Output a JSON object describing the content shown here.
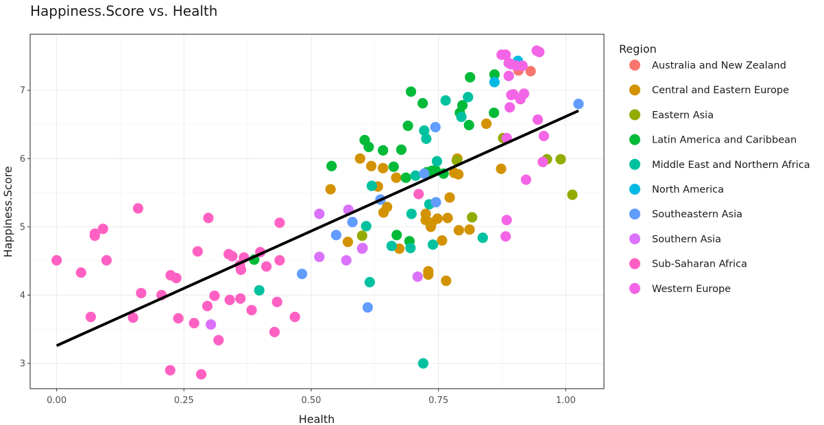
{
  "chart_data": {
    "type": "scatter",
    "title": "Happiness.Score vs. Health",
    "xlabel": "Health",
    "ylabel": "Happiness.Score",
    "xlim": [
      -0.052,
      1.075
    ],
    "ylim": [
      2.63,
      7.82
    ],
    "x_ticks": [
      0,
      0.25,
      0.5,
      0.75,
      1
    ],
    "x_tick_labels": [
      "0.00",
      "0.25",
      "0.50",
      "0.75",
      "1.00"
    ],
    "y_ticks": [
      3,
      4,
      5,
      6,
      7
    ],
    "y_tick_labels": [
      "3",
      "4",
      "5",
      "6",
      "7"
    ],
    "grid": true,
    "legend": {
      "title": "Region",
      "position": "right"
    },
    "trend_line": {
      "x": [
        0.0,
        1.025
      ],
      "y": [
        3.26,
        6.7
      ],
      "color": "#000000"
    },
    "series": [
      {
        "name": "Australia and New Zealand",
        "color": "#F8766D",
        "points": [
          [
            0.931,
            7.28
          ],
          [
            0.907,
            7.29
          ]
        ]
      },
      {
        "name": "Central and Eastern Europe",
        "color": "#D39200",
        "points": [
          [
            0.538,
            5.55
          ],
          [
            0.596,
            6.0
          ],
          [
            0.618,
            5.89
          ],
          [
            0.631,
            5.59
          ],
          [
            0.641,
            5.86
          ],
          [
            0.649,
            5.29
          ],
          [
            0.667,
            5.72
          ],
          [
            0.642,
            5.21
          ],
          [
            0.572,
            4.78
          ],
          [
            0.673,
            4.68
          ],
          [
            0.725,
            5.19
          ],
          [
            0.725,
            5.1
          ],
          [
            0.735,
            5.0
          ],
          [
            0.737,
            5.06
          ],
          [
            0.748,
            5.12
          ],
          [
            0.768,
            5.13
          ],
          [
            0.772,
            5.43
          ],
          [
            0.781,
            5.79
          ],
          [
            0.789,
            5.77
          ],
          [
            0.787,
            6.0
          ],
          [
            0.79,
            4.95
          ],
          [
            0.811,
            4.96
          ],
          [
            0.757,
            4.8
          ],
          [
            0.844,
            6.51
          ],
          [
            0.873,
            5.85
          ],
          [
            0.73,
            4.35
          ],
          [
            0.73,
            4.3
          ],
          [
            0.765,
            4.21
          ]
        ]
      },
      {
        "name": "Eastern Asia",
        "color": "#93AA00",
        "points": [
          [
            0.6,
            4.87
          ],
          [
            0.786,
            5.97
          ],
          [
            0.877,
            6.3
          ],
          [
            0.963,
            5.99
          ],
          [
            0.99,
            5.99
          ],
          [
            1.013,
            5.47
          ],
          [
            0.816,
            5.14
          ]
        ]
      },
      {
        "name": "Latin America and Caribbean",
        "color": "#00BA38",
        "points": [
          [
            0.54,
            5.89
          ],
          [
            0.605,
            6.27
          ],
          [
            0.613,
            6.17
          ],
          [
            0.641,
            6.12
          ],
          [
            0.662,
            5.88
          ],
          [
            0.677,
            6.13
          ],
          [
            0.69,
            6.48
          ],
          [
            0.696,
            6.98
          ],
          [
            0.719,
            6.81
          ],
          [
            0.727,
            5.8
          ],
          [
            0.737,
            5.82
          ],
          [
            0.76,
            5.78
          ],
          [
            0.744,
            5.83
          ],
          [
            0.792,
            6.67
          ],
          [
            0.797,
            6.78
          ],
          [
            0.81,
            6.49
          ],
          [
            0.812,
            7.19
          ],
          [
            0.859,
            6.67
          ],
          [
            0.86,
            7.23
          ],
          [
            0.693,
            4.79
          ],
          [
            0.668,
            4.88
          ],
          [
            0.388,
            4.52
          ],
          [
            0.686,
            5.72
          ]
        ]
      },
      {
        "name": "Middle East and Northern Africa",
        "color": "#00C19F",
        "points": [
          [
            0.398,
            4.07
          ],
          [
            0.608,
            5.01
          ],
          [
            0.615,
            4.19
          ],
          [
            0.619,
            5.6
          ],
          [
            0.658,
            4.72
          ],
          [
            0.695,
            4.69
          ],
          [
            0.697,
            5.19
          ],
          [
            0.705,
            5.75
          ],
          [
            0.722,
            6.41
          ],
          [
            0.726,
            6.29
          ],
          [
            0.732,
            5.33
          ],
          [
            0.739,
            4.74
          ],
          [
            0.747,
            5.96
          ],
          [
            0.764,
            6.85
          ],
          [
            0.795,
            6.61
          ],
          [
            0.808,
            6.9
          ],
          [
            0.837,
            4.84
          ],
          [
            0.72,
            3.0
          ]
        ]
      },
      {
        "name": "North America",
        "color": "#00B9E3",
        "points": [
          [
            0.86,
            7.12
          ],
          [
            0.906,
            7.43
          ]
        ]
      },
      {
        "name": "Southeastern Asia",
        "color": "#619CFF",
        "points": [
          [
            0.482,
            4.31
          ],
          [
            0.549,
            4.88
          ],
          [
            0.581,
            5.07
          ],
          [
            0.636,
            5.4
          ],
          [
            0.611,
            3.82
          ],
          [
            0.722,
            5.78
          ],
          [
            0.744,
            6.46
          ],
          [
            0.745,
            5.36
          ],
          [
            1.025,
            6.8
          ]
        ]
      },
      {
        "name": "Southern Asia",
        "color": "#DB72FB",
        "points": [
          [
            0.303,
            3.57
          ],
          [
            0.516,
            5.19
          ],
          [
            0.516,
            4.56
          ],
          [
            0.573,
            5.25
          ],
          [
            0.569,
            4.51
          ],
          [
            0.601,
            4.69
          ],
          [
            0.6,
            4.68
          ],
          [
            0.709,
            4.27
          ]
        ]
      },
      {
        "name": "Sub-Saharan Africa",
        "color": "#FF61C3",
        "points": [
          [
            0.0,
            4.51
          ],
          [
            0.048,
            4.33
          ],
          [
            0.067,
            3.68
          ],
          [
            0.075,
            4.9
          ],
          [
            0.075,
            4.87
          ],
          [
            0.091,
            4.97
          ],
          [
            0.098,
            4.51
          ],
          [
            0.15,
            3.67
          ],
          [
            0.16,
            5.27
          ],
          [
            0.166,
            4.03
          ],
          [
            0.206,
            4.0
          ],
          [
            0.224,
            4.29
          ],
          [
            0.235,
            4.25
          ],
          [
            0.239,
            3.66
          ],
          [
            0.27,
            3.59
          ],
          [
            0.277,
            4.64
          ],
          [
            0.296,
            3.84
          ],
          [
            0.298,
            5.13
          ],
          [
            0.31,
            3.99
          ],
          [
            0.318,
            3.34
          ],
          [
            0.338,
            4.6
          ],
          [
            0.34,
            3.93
          ],
          [
            0.345,
            4.57
          ],
          [
            0.361,
            3.95
          ],
          [
            0.362,
            4.37
          ],
          [
            0.368,
            4.55
          ],
          [
            0.383,
            3.78
          ],
          [
            0.4,
            4.63
          ],
          [
            0.412,
            4.42
          ],
          [
            0.428,
            3.46
          ],
          [
            0.433,
            3.9
          ],
          [
            0.438,
            4.51
          ],
          [
            0.438,
            5.06
          ],
          [
            0.468,
            3.68
          ],
          [
            0.223,
            2.9
          ],
          [
            0.284,
            2.84
          ],
          [
            0.36,
            4.44
          ],
          [
            0.711,
            5.48
          ]
        ]
      },
      {
        "name": "Western Europe",
        "color": "#F365E6",
        "points": [
          [
            0.874,
            7.52
          ],
          [
            0.882,
            7.52
          ],
          [
            0.884,
            6.3
          ],
          [
            0.884,
            5.1
          ],
          [
            0.882,
            4.86
          ],
          [
            0.888,
            7.21
          ],
          [
            0.888,
            7.4
          ],
          [
            0.89,
            6.75
          ],
          [
            0.893,
            7.38
          ],
          [
            0.893,
            6.93
          ],
          [
            0.897,
            6.94
          ],
          [
            0.903,
            7.36
          ],
          [
            0.911,
            6.87
          ],
          [
            0.915,
            7.36
          ],
          [
            0.918,
            6.95
          ],
          [
            0.922,
            5.69
          ],
          [
            0.943,
            7.58
          ],
          [
            0.945,
            6.57
          ],
          [
            0.948,
            7.56
          ],
          [
            0.955,
            5.95
          ],
          [
            0.957,
            6.33
          ]
        ]
      }
    ]
  }
}
